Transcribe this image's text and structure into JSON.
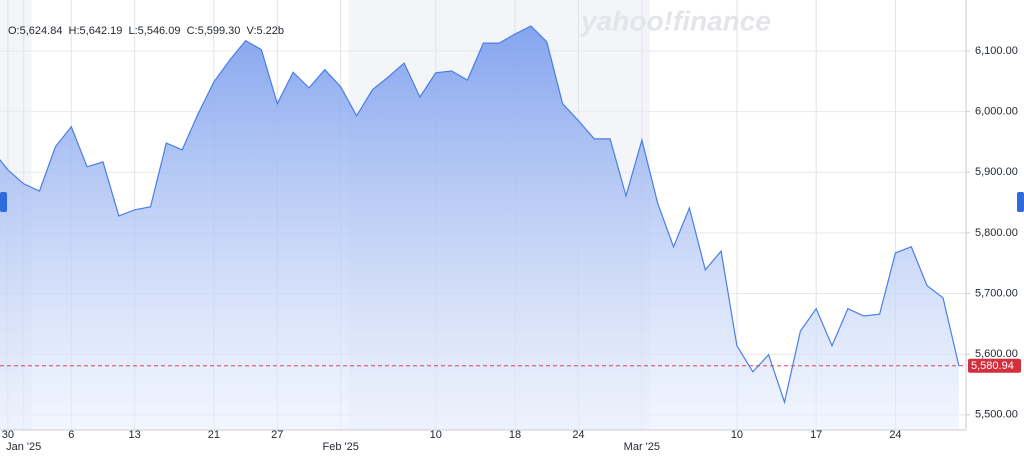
{
  "chart_data": {
    "type": "line",
    "ohlc": "O:5,624.84  H:5,642.19  L:5,546.09  C:5,599.30  V:5.22b",
    "watermark": "yahoo!finance",
    "categories": [
      null,
      "30",
      "Jan '25",
      null,
      null,
      "6",
      null,
      null,
      null,
      "13",
      null,
      null,
      null,
      null,
      "21",
      null,
      null,
      null,
      "27",
      null,
      null,
      null,
      "Feb '25",
      null,
      null,
      null,
      null,
      null,
      "10",
      null,
      null,
      null,
      null,
      "18",
      null,
      null,
      null,
      "24",
      null,
      null,
      null,
      "Mar '25",
      null,
      null,
      null,
      null,
      null,
      "10",
      null,
      null,
      null,
      null,
      "17",
      null,
      null,
      null,
      null,
      "24",
      null,
      null,
      null,
      null
    ],
    "series": [
      {
        "color": "#4a7ee8",
        "values": [
          5937,
          5904,
          5881,
          5869,
          5942,
          5975,
          5909,
          5917,
          5828,
          5838,
          5843,
          5948,
          5937,
          5996,
          6049,
          6085,
          6117,
          6102,
          6013,
          6065,
          6039,
          6069,
          6041,
          5993,
          6036,
          6057,
          6080,
          6024,
          6064,
          6067,
          6052,
          6113,
          6113,
          6128,
          6141,
          6115,
          6013,
          5985,
          5955,
          5955,
          5861,
          5953,
          5849,
          5777,
          5841,
          5739,
          5770,
          5614,
          5571,
          5599,
          5521,
          5638,
          5675,
          5614,
          5675,
          5663,
          5666,
          5767,
          5777,
          5713,
          5693,
          5581
        ]
      }
    ],
    "last_price": {
      "value": 5580.94,
      "label": "5,580.94"
    },
    "ylim": [
      5475,
      6184
    ],
    "yticks": [
      {
        "value": 5500,
        "label": "5,500.00"
      },
      {
        "value": 5600,
        "label": "5,600.00"
      },
      {
        "value": 5700,
        "label": "5,700.00"
      },
      {
        "value": 5800,
        "label": "5,800.00"
      },
      {
        "value": 5900,
        "label": "5,900.00"
      },
      {
        "value": 6000,
        "label": "6,000.00"
      },
      {
        "value": 6100,
        "label": "6,100.00"
      }
    ],
    "grid": true
  }
}
